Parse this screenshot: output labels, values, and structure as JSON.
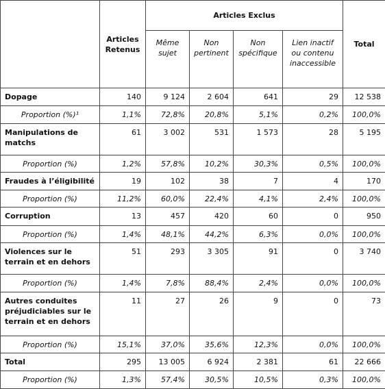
{
  "header": {
    "retenus": "Articles Retenus",
    "exclus": "Articles Exclus",
    "exclus_columns": [
      "Même sujet",
      "Non pertinent",
      "Non spécifique",
      "Lien inactif ou contenu inaccessible"
    ],
    "total": "Total"
  },
  "rows": [
    {
      "label": "Dopage",
      "values": [
        "140",
        "9 124",
        "2 604",
        "641",
        "29",
        "12 538"
      ]
    },
    {
      "label": "Proportion (%)¹",
      "values": [
        "1,1%",
        "72,8%",
        "20,8%",
        "5,1%",
        "0,2%",
        "100,0%"
      ]
    },
    {
      "label": "Manipulations de matchs",
      "values": [
        "61",
        "3 002",
        "531",
        "1 573",
        "28",
        "5 195"
      ]
    },
    {
      "label": "Proportion (%)",
      "values": [
        "1,2%",
        "57,8%",
        "10,2%",
        "30,3%",
        "0,5%",
        "100,0%"
      ]
    },
    {
      "label": "Fraudes à l’éligibilité",
      "values": [
        "19",
        "102",
        "38",
        "7",
        "4",
        "170"
      ]
    },
    {
      "label": "Proportion (%)",
      "values": [
        "11,2%",
        "60,0%",
        "22,4%",
        "4,1%",
        "2,4%",
        "100,0%"
      ]
    },
    {
      "label": "Corruption",
      "values": [
        "13",
        "457",
        "420",
        "60",
        "0",
        "950"
      ]
    },
    {
      "label": "Proportion (%)",
      "values": [
        "1,4%",
        "48,1%",
        "44,2%",
        "6,3%",
        "0,0%",
        "100,0%"
      ]
    },
    {
      "label": "Violences sur le terrain et en dehors",
      "values": [
        "51",
        "293",
        "3 305",
        "91",
        "0",
        "3 740"
      ]
    },
    {
      "label": "Proportion (%)",
      "values": [
        "1,4%",
        "7,8%",
        "88,4%",
        "2,4%",
        "0,0%",
        "100,0%"
      ]
    },
    {
      "label": "Autres conduites préjudiciables sur le terrain et en dehors",
      "values": [
        "11",
        "27",
        "26",
        "9",
        "0",
        "73"
      ]
    },
    {
      "label": "Proportion (%)",
      "values": [
        "15,1%",
        "37,0%",
        "35,6%",
        "12,3%",
        "0,0%",
        "100,0%"
      ]
    },
    {
      "label": "Total",
      "values": [
        "295",
        "13 005",
        "6 924",
        "2 381",
        "61",
        "22 666"
      ]
    },
    {
      "label": "Proportion (%)",
      "values": [
        "1,3%",
        "57,4%",
        "30,5%",
        "10,5%",
        "0,3%",
        "100,0%"
      ]
    }
  ]
}
